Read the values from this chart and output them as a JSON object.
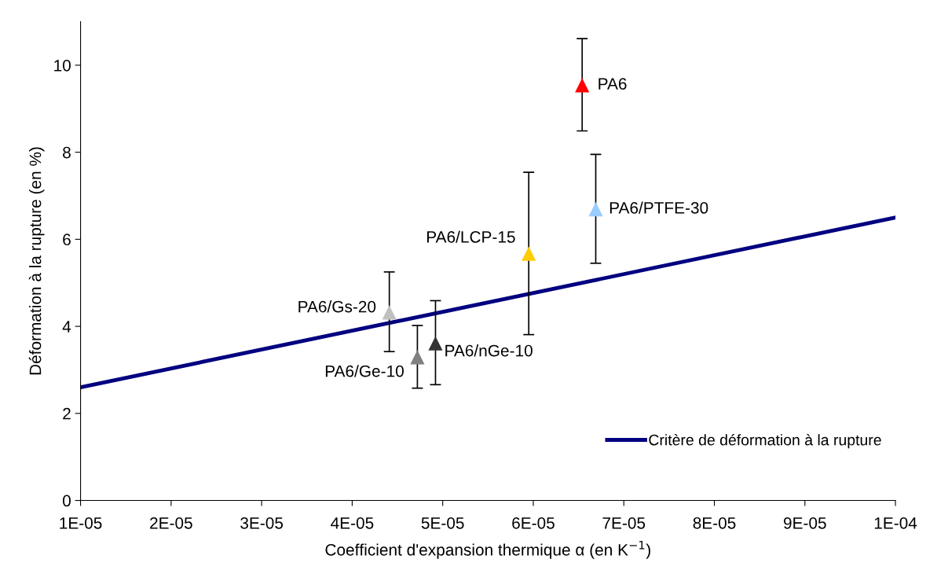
{
  "chart_data": {
    "type": "scatter",
    "xlabel": "Coefficient d'expansion thermique α (en K$^{−1}$)",
    "ylabel": "Déformation à la rupture (en %)",
    "xlim": [
      1e-05,
      0.0001
    ],
    "ylim": [
      0,
      11
    ],
    "xticks": [
      {
        "value": 1e-05,
        "label": "1E-05"
      },
      {
        "value": 2e-05,
        "label": "2E-05"
      },
      {
        "value": 3e-05,
        "label": "3E-05"
      },
      {
        "value": 4e-05,
        "label": "4E-05"
      },
      {
        "value": 5e-05,
        "label": "5E-05"
      },
      {
        "value": 6e-05,
        "label": "6E-05"
      },
      {
        "value": 7e-05,
        "label": "7E-05"
      },
      {
        "value": 8e-05,
        "label": "8E-05"
      },
      {
        "value": 9e-05,
        "label": "9E-05"
      },
      {
        "value": 0.0001,
        "label": "1E-04"
      }
    ],
    "yticks": [
      0,
      2,
      4,
      6,
      8,
      10
    ],
    "grid": false,
    "legend": "lower right",
    "marker": "triangle",
    "series": [
      {
        "type": "line",
        "name": "Critère de déformation à la rupture",
        "color": "#000080",
        "marker": "none",
        "x": [
          1e-05,
          0.0001
        ],
        "values": [
          2.6,
          6.5
        ]
      },
      {
        "name": "PA6",
        "color": "#ff0000",
        "x": [
          6.54e-05
        ],
        "values": [
          9.54
        ],
        "errors": [
          [
            8.49,
            10.61
          ]
        ]
      },
      {
        "name": "PA6/PTFE-30",
        "color": "#99ccff",
        "x": [
          6.69e-05
        ],
        "values": [
          6.69
        ],
        "errors": [
          [
            5.45,
            7.95
          ]
        ]
      },
      {
        "name": "PA6/LCP-15",
        "color": "#ffcc00",
        "x": [
          5.95e-05
        ],
        "values": [
          5.67
        ],
        "errors": [
          [
            3.81,
            7.54
          ]
        ]
      },
      {
        "name": "PA6/Gs-20",
        "color": "#c0c0c0",
        "x": [
          4.41e-05
        ],
        "values": [
          4.32
        ],
        "errors": [
          [
            3.42,
            5.25
          ]
        ]
      },
      {
        "name": "PA6/Ge-10",
        "color": "#808080",
        "x": [
          4.72e-05
        ],
        "values": [
          3.29
        ],
        "errors": [
          [
            2.58,
            4.02
          ]
        ]
      },
      {
        "name": "PA6/nGe-10",
        "color": "#333333",
        "x": [
          4.92e-05
        ],
        "values": [
          3.61
        ],
        "errors": [
          [
            2.66,
            4.59
          ]
        ]
      }
    ]
  }
}
